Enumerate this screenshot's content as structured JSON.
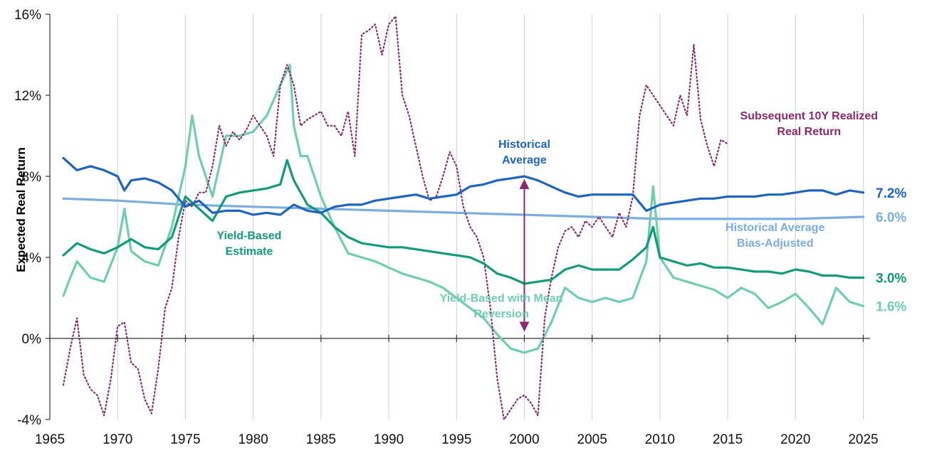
{
  "chart_data": {
    "type": "line",
    "title": "",
    "xlabel": "",
    "ylabel": "Expected Real Return",
    "xlim": [
      1965,
      2025.5
    ],
    "ylim": [
      -4,
      16
    ],
    "x_ticks": [
      1965,
      1970,
      1975,
      1980,
      1985,
      1990,
      1995,
      2000,
      2005,
      2010,
      2015,
      2020,
      2025
    ],
    "x_tick_labels": [
      "1965",
      "1970",
      "1975",
      "1980",
      "1985",
      "1990",
      "1995",
      "2000",
      "2005",
      "2010",
      "2015",
      "2020",
      "2025"
    ],
    "y_ticks": [
      -4,
      0,
      4,
      8,
      12,
      16
    ],
    "y_tick_labels": [
      "-4%",
      "0%",
      "4%",
      "8%",
      "12%",
      "16%"
    ],
    "grid": "vertical",
    "series": [
      {
        "name": "Subsequent 10Y Realized Real Return",
        "color": "#8b2a6e",
        "style": "dotted",
        "x": [
          1966.0,
          1966.5,
          1967.0,
          1967.5,
          1968.0,
          1968.5,
          1969.0,
          1969.5,
          1970.0,
          1970.5,
          1971.0,
          1971.5,
          1972.0,
          1972.5,
          1973.0,
          1973.5,
          1974.0,
          1974.5,
          1975.0,
          1975.5,
          1976.0,
          1976.5,
          1977.0,
          1977.5,
          1978.0,
          1978.5,
          1979.0,
          1979.5,
          1980.0,
          1980.5,
          1981.0,
          1981.5,
          1982.0,
          1982.5,
          1983.0,
          1983.5,
          1984.0,
          1984.5,
          1985.0,
          1985.5,
          1986.0,
          1986.5,
          1987.0,
          1987.5,
          1988.0,
          1988.5,
          1989.0,
          1989.5,
          1990.0,
          1990.5,
          1991.0,
          1991.5,
          1992.0,
          1992.5,
          1993.0,
          1993.5,
          1994.0,
          1994.5,
          1995.0,
          1995.5,
          1996.0,
          1996.5,
          1997.0,
          1997.5,
          1998.0,
          1998.5,
          1999.0,
          1999.5,
          2000.0,
          2000.5,
          2001.0,
          2001.5,
          2002.0,
          2002.5,
          2003.0,
          2003.5,
          2004.0,
          2004.5,
          2005.0,
          2005.5,
          2006.0,
          2006.5,
          2007.0,
          2007.5,
          2008.0,
          2008.5,
          2009.0,
          2009.5,
          2010.0,
          2010.5,
          2011.0,
          2011.5,
          2012.0,
          2012.5,
          2013.0,
          2013.5,
          2014.0,
          2014.5,
          2015.0
        ],
        "values": [
          -2.3,
          -0.5,
          1.0,
          -1.8,
          -2.5,
          -2.8,
          -3.8,
          -2.0,
          0.6,
          0.8,
          -1.2,
          -1.5,
          -3.0,
          -3.7,
          -1.5,
          1.5,
          2.5,
          5.0,
          6.8,
          6.5,
          7.2,
          7.2,
          8.5,
          10.5,
          9.5,
          10.2,
          9.8,
          10.3,
          11.0,
          10.5,
          10.0,
          9.0,
          12.5,
          13.5,
          12.5,
          10.5,
          10.8,
          11.0,
          11.2,
          10.5,
          10.5,
          10.0,
          11.2,
          9.0,
          15.0,
          15.2,
          15.5,
          14.0,
          15.5,
          15.9,
          12.0,
          11.0,
          9.5,
          8.0,
          6.8,
          7.0,
          8.0,
          9.2,
          8.5,
          6.5,
          5.5,
          5.0,
          4.0,
          1.5,
          -2.0,
          -4.0,
          -3.5,
          -3.0,
          -2.8,
          -3.2,
          -3.8,
          1.0,
          3.0,
          4.5,
          5.3,
          5.5,
          5.0,
          5.8,
          5.5,
          6.0,
          5.5,
          5.0,
          6.2,
          5.5,
          7.0,
          11.0,
          12.5,
          12.0,
          11.5,
          11.0,
          10.5,
          12.0,
          11.0,
          14.5,
          10.8,
          9.5,
          8.5,
          9.8,
          9.6
        ]
      },
      {
        "name": "Historical Average",
        "color": "#1c64c0",
        "style": "solid",
        "x": [
          1966,
          1967,
          1968,
          1969,
          1970,
          1970.5,
          1971,
          1972,
          1973,
          1974,
          1975,
          1976,
          1977,
          1978,
          1979,
          1980,
          1981,
          1982,
          1983,
          1984,
          1985,
          1986,
          1987,
          1988,
          1989,
          1990,
          1991,
          1992,
          1993,
          1994,
          1995,
          1996,
          1997,
          1998,
          1999,
          2000,
          2001,
          2002,
          2003,
          2004,
          2005,
          2006,
          2007,
          2008,
          2009,
          2010,
          2011,
          2012,
          2013,
          2014,
          2015,
          2016,
          2017,
          2018,
          2019,
          2020,
          2021,
          2022,
          2023,
          2024,
          2025
        ],
        "values": [
          8.9,
          8.3,
          8.5,
          8.3,
          8.0,
          7.3,
          7.8,
          7.9,
          7.7,
          7.3,
          6.5,
          6.8,
          6.2,
          6.3,
          6.3,
          6.1,
          6.2,
          6.1,
          6.6,
          6.3,
          6.2,
          6.5,
          6.6,
          6.6,
          6.8,
          6.9,
          7.0,
          7.1,
          6.9,
          7.0,
          7.1,
          7.5,
          7.6,
          7.8,
          7.9,
          8.0,
          7.8,
          7.5,
          7.2,
          7.0,
          7.1,
          7.1,
          7.1,
          7.1,
          6.3,
          6.6,
          6.7,
          6.8,
          6.9,
          6.9,
          7.0,
          7.0,
          7.0,
          7.1,
          7.1,
          7.2,
          7.3,
          7.3,
          7.1,
          7.3,
          7.2
        ]
      },
      {
        "name": "Historical Average Bias-Adjusted",
        "color": "#7aaee0",
        "style": "solid",
        "x": [
          1966,
          1970,
          1975,
          1980,
          1985,
          1990,
          1995,
          2000,
          2005,
          2010,
          2015,
          2020,
          2025
        ],
        "values": [
          6.9,
          6.8,
          6.6,
          6.5,
          6.4,
          6.3,
          6.2,
          6.1,
          6.0,
          5.9,
          5.9,
          5.9,
          6.0
        ]
      },
      {
        "name": "Yield-Based Estimate",
        "color": "#109b79",
        "style": "solid",
        "x": [
          1966,
          1967,
          1968,
          1969,
          1970,
          1971,
          1972,
          1973,
          1974,
          1975,
          1976,
          1977,
          1978,
          1979,
          1980,
          1981,
          1982,
          1982.5,
          1983,
          1984,
          1985,
          1986,
          1987,
          1988,
          1989,
          1990,
          1991,
          1992,
          1993,
          1994,
          1995,
          1996,
          1997,
          1998,
          1999,
          2000,
          2001,
          2002,
          2003,
          2004,
          2005,
          2006,
          2007,
          2008,
          2009,
          2009.5,
          2010,
          2011,
          2012,
          2013,
          2014,
          2015,
          2016,
          2017,
          2018,
          2019,
          2020,
          2021,
          2022,
          2023,
          2024,
          2025
        ],
        "values": [
          4.1,
          4.7,
          4.4,
          4.2,
          4.5,
          4.9,
          4.5,
          4.4,
          5.0,
          7.0,
          6.4,
          5.8,
          7.0,
          7.2,
          7.3,
          7.4,
          7.6,
          8.8,
          7.8,
          6.6,
          6.2,
          5.5,
          5.0,
          4.7,
          4.6,
          4.5,
          4.5,
          4.4,
          4.3,
          4.2,
          4.1,
          4.0,
          3.7,
          3.2,
          3.0,
          2.7,
          2.8,
          2.9,
          3.4,
          3.6,
          3.4,
          3.4,
          3.4,
          3.9,
          4.5,
          5.5,
          4.0,
          3.8,
          3.6,
          3.7,
          3.5,
          3.5,
          3.4,
          3.3,
          3.3,
          3.2,
          3.4,
          3.3,
          3.1,
          3.1,
          3.0,
          3.0
        ]
      },
      {
        "name": "Yield-Based with Mean Reversion",
        "color": "#6fceb0",
        "style": "solid",
        "x": [
          1966,
          1966.5,
          1967,
          1968,
          1969,
          1970,
          1970.5,
          1971,
          1972,
          1973,
          1974,
          1975,
          1975.5,
          1976,
          1977,
          1978,
          1979,
          1980,
          1981,
          1982,
          1982.7,
          1983,
          1983.5,
          1984,
          1985,
          1986,
          1987,
          1988,
          1989,
          1990,
          1991,
          1992,
          1993,
          1994,
          1995,
          1996,
          1997,
          1998,
          1999,
          2000,
          2001,
          2002,
          2003,
          2004,
          2005,
          2006,
          2007,
          2008,
          2009,
          2009.5,
          2010,
          2011,
          2012,
          2013,
          2014,
          2015,
          2016,
          2017,
          2018,
          2019,
          2020,
          2021,
          2022,
          2023,
          2024,
          2025
        ],
        "values": [
          2.1,
          3.0,
          3.8,
          3.0,
          2.8,
          4.5,
          6.4,
          4.3,
          3.8,
          3.6,
          5.5,
          8.5,
          11.0,
          9.0,
          7.0,
          10.0,
          10.0,
          10.2,
          11.0,
          12.5,
          13.5,
          10.5,
          9.0,
          9.0,
          7.0,
          5.5,
          4.2,
          4.0,
          3.8,
          3.5,
          3.2,
          3.0,
          2.8,
          2.5,
          2.0,
          1.5,
          1.0,
          0.2,
          -0.5,
          -0.7,
          -0.5,
          0.8,
          2.5,
          2.0,
          1.8,
          2.0,
          1.8,
          2.0,
          3.8,
          7.5,
          4.0,
          3.0,
          2.8,
          2.6,
          2.4,
          2.0,
          2.5,
          2.2,
          1.5,
          1.8,
          2.2,
          1.5,
          0.7,
          2.5,
          1.8,
          1.6
        ]
      }
    ],
    "annotations": [
      {
        "id": "realized",
        "lines": [
          "Subsequent 10Y Realized",
          "Real Return"
        ],
        "color": "#8b2a6e",
        "x": 2021.0,
        "y": 10.8
      },
      {
        "id": "hist-avg",
        "lines": [
          "Historical",
          "Average"
        ],
        "color": "#1c64c0",
        "x": 2000.0,
        "y": 9.4
      },
      {
        "id": "bias-adj",
        "lines": [
          "Historical Average",
          "Bias-Adjusted"
        ],
        "color": "#7aaee0",
        "x": 2018.5,
        "y": 5.3
      },
      {
        "id": "yield-est",
        "lines": [
          "Yield-Based",
          "Estimate"
        ],
        "color": "#109b79",
        "x": 1979.7,
        "y": 4.9
      },
      {
        "id": "yield-mr",
        "lines": [
          "Yield-Based with Mean",
          "Reversion"
        ],
        "color": "#6fceb0",
        "x": 1998.3,
        "y": 1.8
      }
    ],
    "end_labels": [
      {
        "text": "7.2%",
        "value": 7.2,
        "color": "#1c64c0"
      },
      {
        "text": "6.0%",
        "value": 6.0,
        "color": "#7aaee0"
      },
      {
        "text": "3.0%",
        "value": 3.0,
        "color": "#109b79"
      },
      {
        "text": "1.6%",
        "value": 1.6,
        "color": "#6fceb0"
      }
    ],
    "arrow": {
      "x": 2000,
      "from": 7.9,
      "to": 0.3,
      "color": "#8b2a6e"
    }
  }
}
